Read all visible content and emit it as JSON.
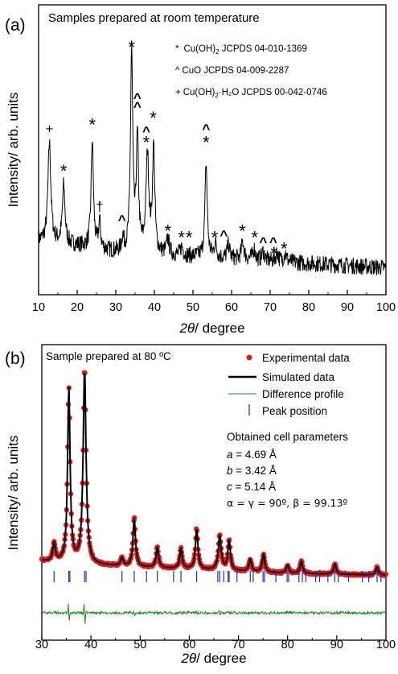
{
  "chart_data": [
    {
      "panel_label": "(a)",
      "type": "line",
      "title": "Samples prepared at room temperature",
      "xlabel_italic": "2θ",
      "xlabel_rest": "/ degree",
      "ylabel": "Intensity/ arb. units",
      "xlim": [
        10,
        100
      ],
      "x_ticks": [
        10,
        20,
        30,
        40,
        50,
        60,
        70,
        80,
        90,
        100
      ],
      "grid": false,
      "legend_position": "top-right",
      "legend": [
        {
          "symbol": "*",
          "base": "Cu(OH)",
          "sub": "2",
          "rest": " JCPDS 04-010-1369"
        },
        {
          "symbol": "^",
          "base": "CuO JCPDS 04-009-2287",
          "sub": "",
          "rest": ""
        },
        {
          "symbol": "+",
          "base": "Cu(OH)",
          "sub": "2",
          "rest": "·H₂O JCPDS 00-042-0746"
        }
      ],
      "baseline": [
        [
          10,
          0.22
        ],
        [
          20,
          0.2
        ],
        [
          30,
          0.17
        ],
        [
          40,
          0.16
        ],
        [
          50,
          0.15
        ],
        [
          60,
          0.14
        ],
        [
          70,
          0.13
        ],
        [
          80,
          0.12
        ],
        [
          90,
          0.11
        ],
        [
          100,
          0.1
        ]
      ],
      "peaks": [
        {
          "x": 12.8,
          "h": 0.45,
          "w": 0.45
        },
        {
          "x": 16.5,
          "h": 0.26,
          "w": 0.4
        },
        {
          "x": 23.9,
          "h": 0.49,
          "w": 0.35
        },
        {
          "x": 25.8,
          "h": 0.12,
          "w": 0.3
        },
        {
          "x": 31.8,
          "h": 0.06,
          "w": 0.3
        },
        {
          "x": 34.1,
          "h": 0.9,
          "w": 0.35
        },
        {
          "x": 35.6,
          "h": 0.5,
          "w": 0.35
        },
        {
          "x": 38.2,
          "h": 0.44,
          "w": 0.45
        },
        {
          "x": 39.8,
          "h": 0.47,
          "w": 0.35
        },
        {
          "x": 43.5,
          "h": 0.07,
          "w": 0.4
        },
        {
          "x": 47.1,
          "h": 0.04,
          "w": 0.4
        },
        {
          "x": 53.4,
          "h": 0.42,
          "w": 0.35
        },
        {
          "x": 55.8,
          "h": 0.06,
          "w": 0.4
        },
        {
          "x": 59.2,
          "h": 0.06,
          "w": 0.4
        },
        {
          "x": 62.9,
          "h": 0.08,
          "w": 0.4
        },
        {
          "x": 65.8,
          "h": 0.05,
          "w": 0.4
        },
        {
          "x": 68.2,
          "h": 0.04,
          "w": 0.4
        },
        {
          "x": 71.8,
          "h": 0.04,
          "w": 0.4
        },
        {
          "x": 73.9,
          "h": 0.04,
          "w": 0.4
        }
      ],
      "markers": [
        {
          "symbol": "+",
          "x": 12.8,
          "y": 0.74
        },
        {
          "symbol": "*",
          "x": 16.5,
          "y": 0.56
        },
        {
          "symbol": "*",
          "x": 23.9,
          "y": 0.77
        },
        {
          "symbol": "†",
          "x": 25.8,
          "y": 0.39
        },
        {
          "symbol": "^",
          "x": 31.6,
          "y": 0.33
        },
        {
          "symbol": "*",
          "x": 34.1,
          "y": 1.12
        },
        {
          "symbol": "^",
          "x": 35.6,
          "y": 0.88
        },
        {
          "symbol": "^",
          "x": 35.6,
          "y": 0.84
        },
        {
          "symbol": "^",
          "x": 37.9,
          "y": 0.73
        },
        {
          "symbol": "*",
          "x": 37.9,
          "y": 0.69
        },
        {
          "symbol": "*",
          "x": 39.7,
          "y": 0.8
        },
        {
          "symbol": "*",
          "x": 43.5,
          "y": 0.29
        },
        {
          "symbol": "*",
          "x": 47.0,
          "y": 0.26
        },
        {
          "symbol": "*",
          "x": 49.0,
          "y": 0.26
        },
        {
          "symbol": "^",
          "x": 53.4,
          "y": 0.74
        },
        {
          "symbol": "*",
          "x": 53.4,
          "y": 0.69
        },
        {
          "symbol": "*",
          "x": 55.6,
          "y": 0.26
        },
        {
          "symbol": "^",
          "x": 58.0,
          "y": 0.26
        },
        {
          "symbol": "*",
          "x": 62.8,
          "y": 0.29
        },
        {
          "symbol": "*",
          "x": 66.0,
          "y": 0.26
        },
        {
          "symbol": "^",
          "x": 68.2,
          "y": 0.23
        },
        {
          "symbol": "^",
          "x": 70.8,
          "y": 0.23
        },
        {
          "symbol": "*",
          "x": 71.0,
          "y": 0.19
        },
        {
          "symbol": "*",
          "x": 73.6,
          "y": 0.21
        },
        {
          "symbol": "*",
          "x": 76.0,
          "y": 0.15
        }
      ]
    },
    {
      "panel_label": "(b)",
      "type": "line",
      "title": "Sample prepared at 80 ºC",
      "xlabel_italic": "2θ",
      "xlabel_rest": "/ degree",
      "ylabel": "Intensity/ arb. units",
      "xlim": [
        30,
        100
      ],
      "x_ticks": [
        30,
        40,
        50,
        60,
        70,
        80,
        90,
        100
      ],
      "grid": false,
      "legend_position": "top-right",
      "series": [
        {
          "name": "Experimental data",
          "style": "red-dots",
          "color": "#e31a1c"
        },
        {
          "name": "Simulated data",
          "style": "line",
          "color": "#000000"
        },
        {
          "name": "Difference profile",
          "style": "thin-line",
          "color": "#1a8a1a"
        },
        {
          "name": "Peak position",
          "style": "tick",
          "color": "#1f2fbf"
        }
      ],
      "annotation_heading": "Obtained cell parameters",
      "cell_parameters": [
        {
          "sym": "a",
          "val": " = 4.69 Å"
        },
        {
          "sym": "b",
          "val": " = 3.42 Å"
        },
        {
          "sym": "c",
          "val": " = 5.14 Å"
        }
      ],
      "angles_text": "α = γ = 90º, β = 99.13º",
      "baseline": [
        [
          30,
          0.14
        ],
        [
          40,
          0.12
        ],
        [
          50,
          0.11
        ],
        [
          60,
          0.1
        ],
        [
          70,
          0.09
        ],
        [
          80,
          0.08
        ],
        [
          90,
          0.075
        ],
        [
          100,
          0.07
        ]
      ],
      "peaks": [
        {
          "x": 32.5,
          "h": 0.09,
          "w": 0.3
        },
        {
          "x": 35.5,
          "h": 0.86,
          "w": 0.3
        },
        {
          "x": 38.7,
          "h": 0.96,
          "w": 0.35
        },
        {
          "x": 46.3,
          "h": 0.04,
          "w": 0.3
        },
        {
          "x": 48.8,
          "h": 0.24,
          "w": 0.3
        },
        {
          "x": 53.5,
          "h": 0.1,
          "w": 0.3
        },
        {
          "x": 58.3,
          "h": 0.1,
          "w": 0.3
        },
        {
          "x": 61.5,
          "h": 0.2,
          "w": 0.3
        },
        {
          "x": 66.2,
          "h": 0.17,
          "w": 0.35
        },
        {
          "x": 68.1,
          "h": 0.15,
          "w": 0.3
        },
        {
          "x": 72.4,
          "h": 0.06,
          "w": 0.3
        },
        {
          "x": 75.1,
          "h": 0.09,
          "w": 0.3
        },
        {
          "x": 80.0,
          "h": 0.04,
          "w": 0.3
        },
        {
          "x": 82.8,
          "h": 0.06,
          "w": 0.3
        },
        {
          "x": 89.6,
          "h": 0.05,
          "w": 0.3
        },
        {
          "x": 98.2,
          "h": 0.04,
          "w": 0.3
        }
      ],
      "peak_positions": [
        32.5,
        35.5,
        35.7,
        38.7,
        39.0,
        46.3,
        48.8,
        51.3,
        53.5,
        56.8,
        58.3,
        61.5,
        65.8,
        66.2,
        67.0,
        67.9,
        68.1,
        69.7,
        72.4,
        73.0,
        75.0,
        75.3,
        77.6,
        79.9,
        80.2,
        82.3,
        83.0,
        83.7,
        85.7,
        86.5,
        88.2,
        89.6,
        90.3,
        92.4,
        95.2,
        96.5,
        98.2,
        99.0
      ]
    }
  ]
}
